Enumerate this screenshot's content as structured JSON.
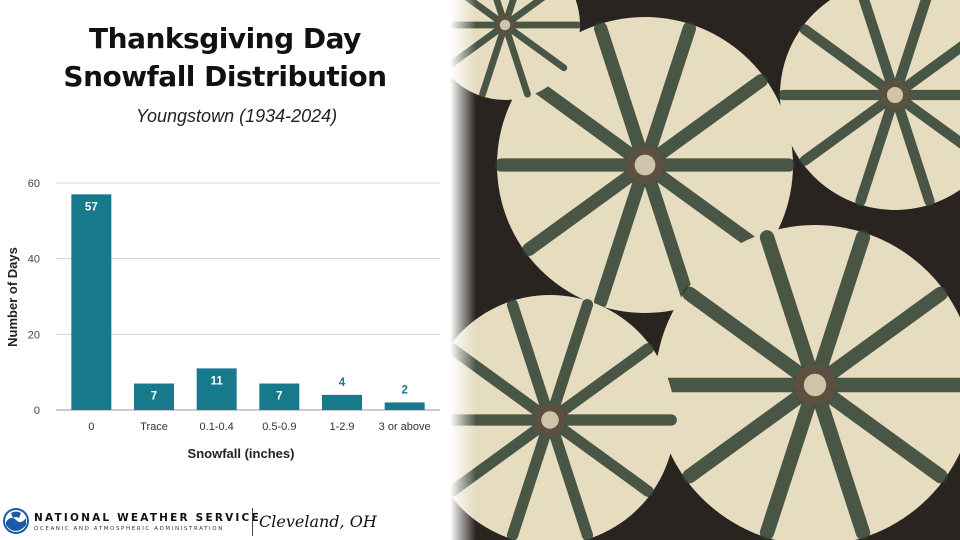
{
  "title_line1": "Thanksgiving Day",
  "title_line2": "Snowfall Distribution",
  "subtitle": "Youngstown (1934-2024)",
  "chart_data": {
    "type": "bar",
    "categories": [
      "0",
      "Trace",
      "0.1-0.4",
      "0.5-0.9",
      "1-2.9",
      "3 or above"
    ],
    "values": [
      57,
      7,
      11,
      7,
      4,
      2
    ],
    "xlabel": "Snowfall (inches)",
    "ylabel": "Number of Days",
    "ylim": [
      0,
      60
    ],
    "yticks": [
      0,
      20,
      40,
      60
    ],
    "grid": true,
    "legend": "none",
    "bar_color": "#177A8C",
    "label_color_inside": "#ffffff",
    "label_color_outside": "#177A8C"
  },
  "footer": {
    "org_name": "NATIONAL WEATHER SERVICE",
    "org_sub": "OCEANIC AND ATMOSPHERIC ADMINISTRATION",
    "office": "Cleveland, OH",
    "logo_icon": "noaa-logo-icon"
  },
  "photo": {
    "subject": "pumpkins-photo",
    "colors": {
      "cream": "#E6DCC0",
      "stripe": "#2E3F30",
      "background": "#2A2420"
    }
  }
}
